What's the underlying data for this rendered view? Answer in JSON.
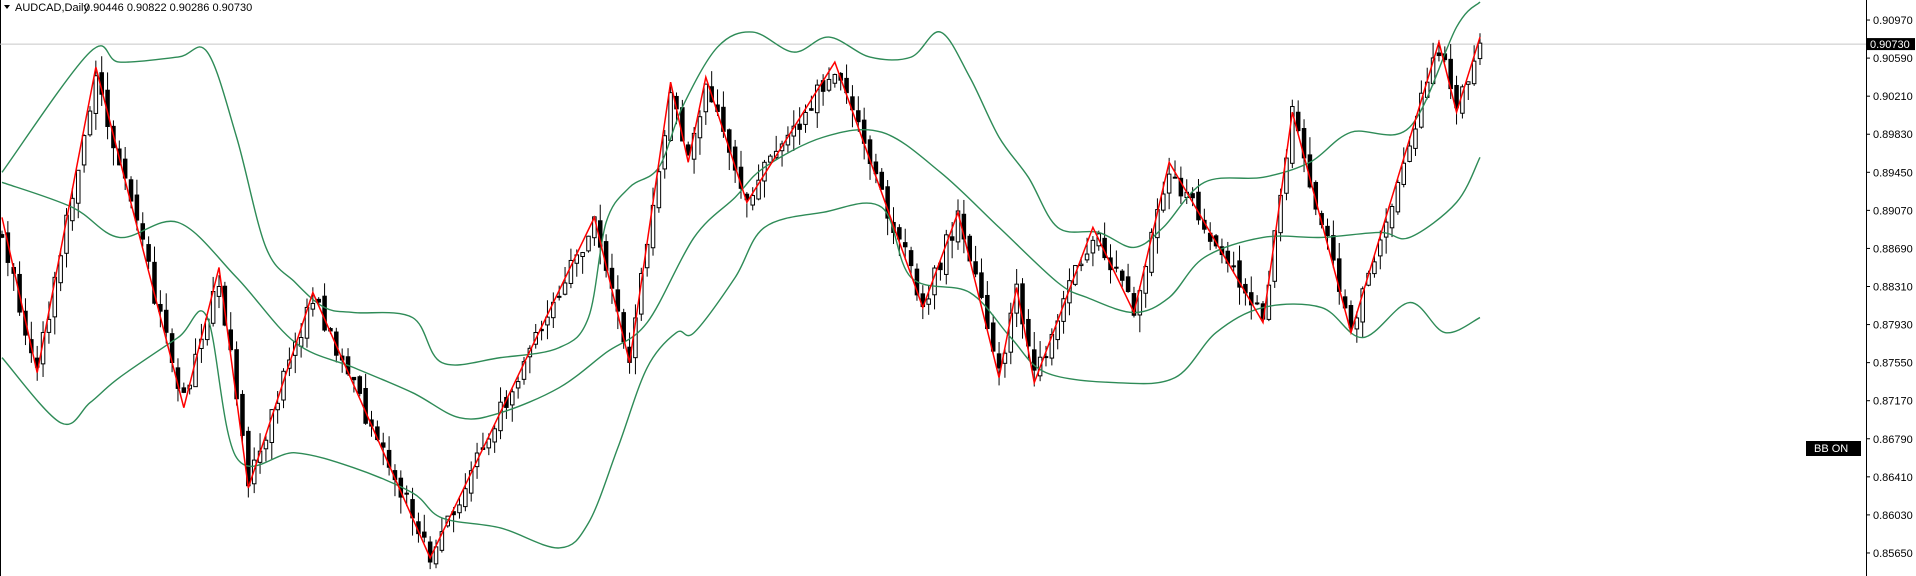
{
  "header": {
    "symbol": "AUDCAD,Daily",
    "ohlc": "0.90446 0.90822 0.90286 0.90730"
  },
  "indicator_button": {
    "label": "BB ON"
  },
  "current_price": {
    "label": "0.90730",
    "value": 0.9073
  },
  "colors": {
    "bollinger": "#2e8b57",
    "zigzag": "#ff0000",
    "candle": "#000000",
    "price_line": "#c8c8c8"
  },
  "chart_data": {
    "type": "candlestick",
    "symbol": "AUDCAD",
    "timeframe": "Daily",
    "ylim": [
      0.8546,
      0.9117
    ],
    "y_ticks": [
      {
        "value": 0.9097,
        "label": "0.90970"
      },
      {
        "value": 0.9059,
        "label": "0.90590"
      },
      {
        "value": 0.9021,
        "label": "0.90210"
      },
      {
        "value": 0.8983,
        "label": "0.89830"
      },
      {
        "value": 0.8945,
        "label": "0.89450"
      },
      {
        "value": 0.8907,
        "label": "0.89070"
      },
      {
        "value": 0.8869,
        "label": "0.88690"
      },
      {
        "value": 0.8831,
        "label": "0.88310"
      },
      {
        "value": 0.8793,
        "label": "0.87930"
      },
      {
        "value": 0.8755,
        "label": "0.87550"
      },
      {
        "value": 0.8717,
        "label": "0.87170"
      },
      {
        "value": 0.8679,
        "label": "0.86790"
      },
      {
        "value": 0.8641,
        "label": "0.86410"
      },
      {
        "value": 0.8603,
        "label": "0.86030"
      },
      {
        "value": 0.8565,
        "label": "0.85650"
      }
    ],
    "zigzag": [
      [
        0,
        0.89
      ],
      [
        6,
        0.8745
      ],
      [
        16,
        0.905
      ],
      [
        31,
        0.871
      ],
      [
        37,
        0.885
      ],
      [
        42,
        0.863
      ],
      [
        53,
        0.8825
      ],
      [
        73,
        0.856
      ],
      [
        101,
        0.89
      ],
      [
        107,
        0.8755
      ],
      [
        114,
        0.9035
      ],
      [
        117,
        0.8955
      ],
      [
        120,
        0.904
      ],
      [
        127,
        0.8915
      ],
      [
        142,
        0.9055
      ],
      [
        157,
        0.881
      ],
      [
        163,
        0.8905
      ],
      [
        170,
        0.874
      ],
      [
        173,
        0.883
      ],
      [
        176,
        0.8735
      ],
      [
        186,
        0.889
      ],
      [
        193,
        0.8805
      ],
      [
        199,
        0.8955
      ],
      [
        215,
        0.8795
      ],
      [
        220,
        0.9005
      ],
      [
        230,
        0.8785
      ],
      [
        245,
        0.9075
      ],
      [
        248,
        0.9005
      ],
      [
        252,
        0.908
      ]
    ],
    "bollinger_upper": [
      [
        0,
        0.8945
      ],
      [
        15,
        0.9065
      ],
      [
        20,
        0.9055
      ],
      [
        30,
        0.906
      ],
      [
        35,
        0.9065
      ],
      [
        40,
        0.898
      ],
      [
        45,
        0.887
      ],
      [
        50,
        0.8835
      ],
      [
        55,
        0.881
      ],
      [
        60,
        0.8805
      ],
      [
        70,
        0.88
      ],
      [
        75,
        0.8755
      ],
      [
        85,
        0.876
      ],
      [
        95,
        0.877
      ],
      [
        100,
        0.88
      ],
      [
        103,
        0.8895
      ],
      [
        107,
        0.893
      ],
      [
        112,
        0.895
      ],
      [
        116,
        0.901
      ],
      [
        122,
        0.907
      ],
      [
        128,
        0.9085
      ],
      [
        135,
        0.9065
      ],
      [
        141,
        0.908
      ],
      [
        148,
        0.906
      ],
      [
        155,
        0.906
      ],
      [
        160,
        0.9085
      ],
      [
        165,
        0.904
      ],
      [
        170,
        0.898
      ],
      [
        175,
        0.894
      ],
      [
        180,
        0.889
      ],
      [
        187,
        0.8885
      ],
      [
        193,
        0.887
      ],
      [
        198,
        0.889
      ],
      [
        205,
        0.8935
      ],
      [
        215,
        0.894
      ],
      [
        223,
        0.8955
      ],
      [
        230,
        0.8985
      ],
      [
        240,
        0.899
      ],
      [
        248,
        0.909
      ],
      [
        252,
        0.9115
      ]
    ],
    "bollinger_middle": [
      [
        0,
        0.8935
      ],
      [
        12,
        0.891
      ],
      [
        20,
        0.888
      ],
      [
        30,
        0.8895
      ],
      [
        40,
        0.884
      ],
      [
        50,
        0.8775
      ],
      [
        60,
        0.875
      ],
      [
        70,
        0.8725
      ],
      [
        78,
        0.87
      ],
      [
        85,
        0.8705
      ],
      [
        95,
        0.873
      ],
      [
        103,
        0.8765
      ],
      [
        110,
        0.8795
      ],
      [
        118,
        0.888
      ],
      [
        125,
        0.892
      ],
      [
        130,
        0.895
      ],
      [
        140,
        0.898
      ],
      [
        150,
        0.8985
      ],
      [
        160,
        0.8945
      ],
      [
        170,
        0.889
      ],
      [
        180,
        0.8835
      ],
      [
        185,
        0.882
      ],
      [
        193,
        0.8805
      ],
      [
        199,
        0.882
      ],
      [
        205,
        0.886
      ],
      [
        215,
        0.888
      ],
      [
        225,
        0.888
      ],
      [
        235,
        0.8885
      ],
      [
        240,
        0.888
      ],
      [
        248,
        0.8915
      ],
      [
        252,
        0.896
      ]
    ],
    "bollinger_lower": [
      [
        0,
        0.876
      ],
      [
        10,
        0.8695
      ],
      [
        15,
        0.8715
      ],
      [
        20,
        0.874
      ],
      [
        30,
        0.878
      ],
      [
        35,
        0.88
      ],
      [
        40,
        0.866
      ],
      [
        50,
        0.8665
      ],
      [
        60,
        0.865
      ],
      [
        70,
        0.8625
      ],
      [
        75,
        0.86
      ],
      [
        85,
        0.859
      ],
      [
        95,
        0.857
      ],
      [
        100,
        0.8595
      ],
      [
        105,
        0.867
      ],
      [
        110,
        0.875
      ],
      [
        115,
        0.8785
      ],
      [
        118,
        0.8785
      ],
      [
        125,
        0.884
      ],
      [
        130,
        0.889
      ],
      [
        140,
        0.8905
      ],
      [
        150,
        0.891
      ],
      [
        155,
        0.884
      ],
      [
        165,
        0.8825
      ],
      [
        172,
        0.878
      ],
      [
        178,
        0.8745
      ],
      [
        190,
        0.8735
      ],
      [
        200,
        0.874
      ],
      [
        207,
        0.8785
      ],
      [
        215,
        0.881
      ],
      [
        225,
        0.881
      ],
      [
        232,
        0.878
      ],
      [
        240,
        0.8815
      ],
      [
        246,
        0.8785
      ],
      [
        252,
        0.88
      ]
    ],
    "candles": {
      "count": 253,
      "anchors": [
        [
          0,
          0.888
        ],
        [
          6,
          0.8745
        ],
        [
          16,
          0.9045
        ],
        [
          31,
          0.8715
        ],
        [
          37,
          0.884
        ],
        [
          42,
          0.8635
        ],
        [
          53,
          0.882
        ],
        [
          73,
          0.8565
        ],
        [
          101,
          0.8895
        ],
        [
          107,
          0.876
        ],
        [
          114,
          0.903
        ],
        [
          117,
          0.896
        ],
        [
          120,
          0.9035
        ],
        [
          127,
          0.892
        ],
        [
          142,
          0.905
        ],
        [
          157,
          0.8815
        ],
        [
          163,
          0.89
        ],
        [
          170,
          0.8745
        ],
        [
          173,
          0.8825
        ],
        [
          176,
          0.874
        ],
        [
          186,
          0.8885
        ],
        [
          193,
          0.881
        ],
        [
          199,
          0.895
        ],
        [
          215,
          0.88
        ],
        [
          220,
          0.9
        ],
        [
          230,
          0.879
        ],
        [
          245,
          0.907
        ],
        [
          248,
          0.901
        ],
        [
          252,
          0.9073
        ]
      ]
    }
  }
}
